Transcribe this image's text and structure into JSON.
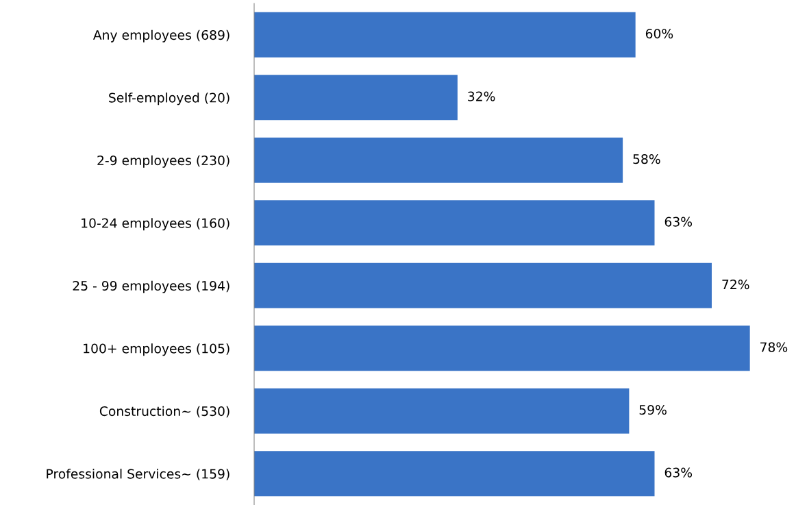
{
  "chart_data": {
    "type": "bar",
    "orientation": "horizontal",
    "categories": [
      "Any employees (689)",
      "Self-employed (20)",
      "2-9 employees (230)",
      "10-24 employees (160)",
      "25 - 99 employees (194)",
      "100+ employees (105)",
      "Construction~ (530)",
      "Professional Services~ (159)"
    ],
    "values": [
      60,
      32,
      58,
      63,
      72,
      78,
      59,
      63
    ],
    "value_labels": [
      "60%",
      "32%",
      "58%",
      "63%",
      "72%",
      "78%",
      "59%",
      "63%"
    ],
    "color": "#3a74c6",
    "grid": false,
    "legend": false,
    "tick_labels": "y"
  }
}
